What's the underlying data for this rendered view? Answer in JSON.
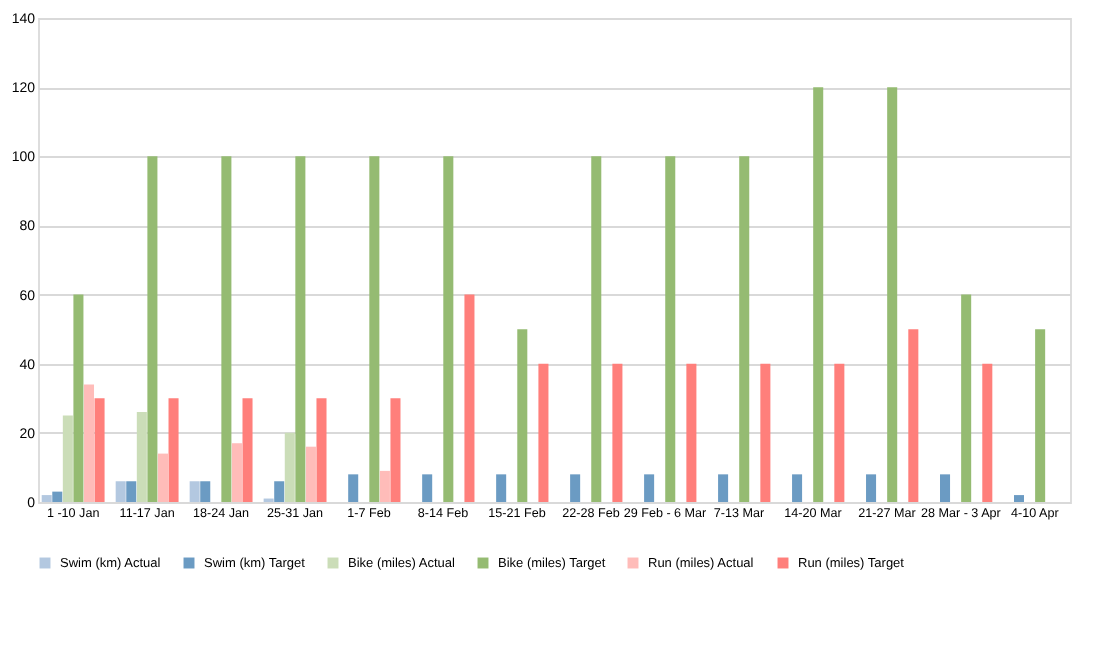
{
  "chart_data": {
    "type": "bar",
    "categories": [
      "1 -10 Jan",
      "11-17 Jan",
      "18-24 Jan",
      "25-31 Jan",
      "1-7 Feb",
      "8-14 Feb",
      "15-21 Feb",
      "22-28 Feb",
      "29 Feb - 6 Mar",
      "7-13 Mar",
      "14-20 Mar",
      "21-27 Mar",
      "28 Mar - 3 Apr",
      "4-10 Apr"
    ],
    "series": [
      {
        "name": "Swim (km) Actual",
        "color": "#b3c8e0",
        "values": [
          2,
          6,
          6,
          1,
          null,
          null,
          null,
          null,
          null,
          null,
          null,
          null,
          null,
          null
        ]
      },
      {
        "name": "Swim (km) Target",
        "color": "#6b9bc3",
        "values": [
          3,
          6,
          6,
          6,
          8,
          8,
          8,
          8,
          8,
          8,
          8,
          8,
          8,
          2
        ]
      },
      {
        "name": "Bike (miles) Actual",
        "color": "#cbddb8",
        "values": [
          25,
          26,
          null,
          20,
          null,
          null,
          null,
          null,
          null,
          null,
          null,
          null,
          null,
          null
        ]
      },
      {
        "name": "Bike (miles) Target",
        "color": "#95bb72",
        "values": [
          60,
          100,
          100,
          100,
          100,
          100,
          50,
          100,
          100,
          100,
          120,
          120,
          60,
          50
        ]
      },
      {
        "name": "Run (miles) Actual",
        "color": "#ffbcb9",
        "values": [
          34,
          14,
          17,
          16,
          9,
          null,
          null,
          null,
          null,
          null,
          null,
          null,
          null,
          null
        ]
      },
      {
        "name": "Run (miles) Target",
        "color": "#ff7f7b",
        "values": [
          30,
          30,
          30,
          30,
          30,
          60,
          40,
          40,
          40,
          40,
          40,
          50,
          40,
          null
        ]
      }
    ],
    "ylim": [
      0,
      140
    ],
    "yticks": [
      0,
      20,
      40,
      60,
      80,
      100,
      120,
      140
    ],
    "grid": "y",
    "legend": "bottom"
  }
}
